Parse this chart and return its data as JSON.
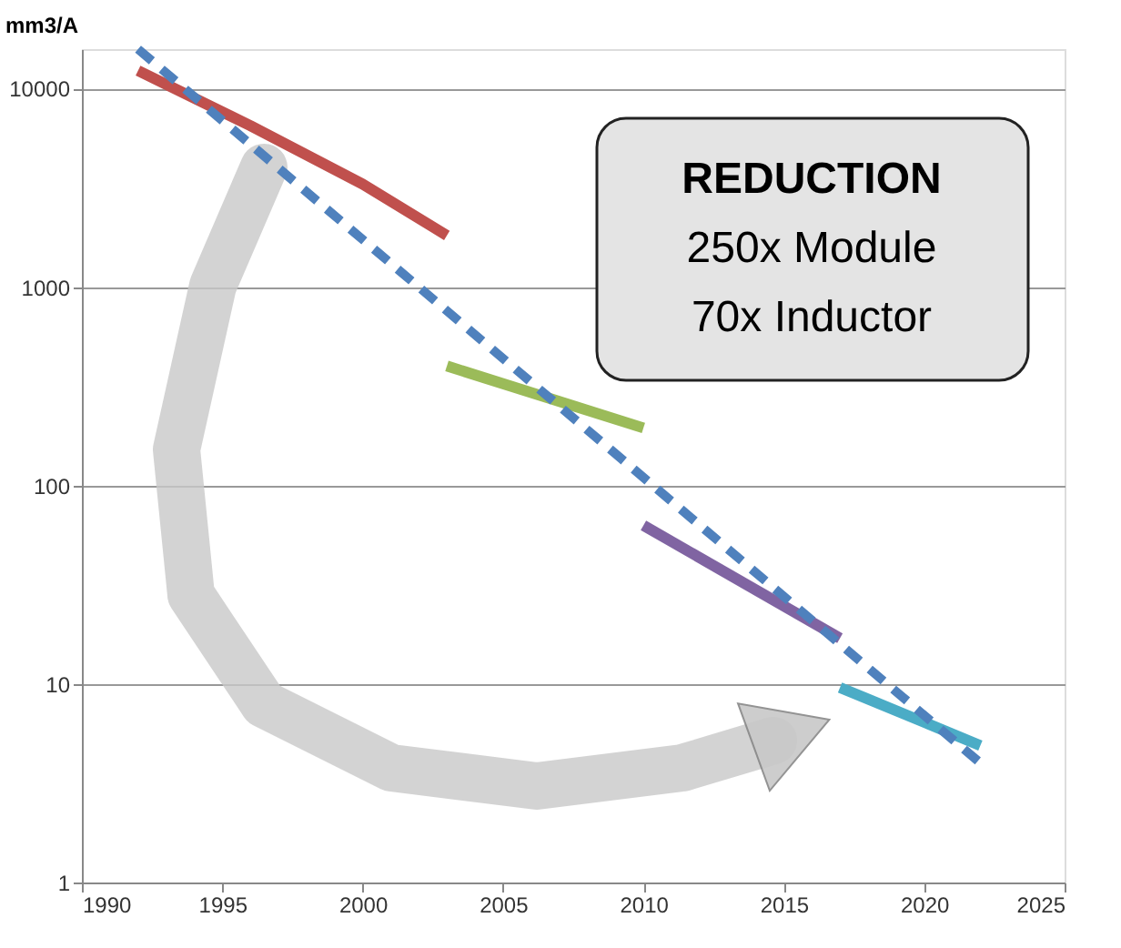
{
  "chart_data": {
    "type": "line",
    "ylabel": "mm3/A",
    "log": "y",
    "grid": "y",
    "line_style": "solid",
    "marker": "none",
    "xlim": [
      1990,
      2025
    ],
    "xticks": [
      1990,
      1995,
      2000,
      2005,
      2010,
      2015,
      2020,
      2025
    ],
    "ylim": [
      1,
      15800
    ],
    "yticks": [
      1,
      10,
      100,
      1000,
      10000
    ],
    "annotations": [
      "REDUCTION",
      "250x Module",
      "70x Inductor"
    ],
    "series": [
      {
        "color": "#c0504d",
        "x": [
          1992,
          1996,
          2000,
          2003
        ],
        "values": [
          12300,
          6500,
          3300,
          1820
        ]
      },
      {
        "color": "#9bbb59",
        "x": [
          2003,
          2010
        ],
        "values": [
          400,
          195
        ]
      },
      {
        "color": "#8064a2",
        "x": [
          2010,
          2017
        ],
        "values": [
          63,
          17
        ]
      },
      {
        "color": "#4bacc6",
        "x": [
          2017,
          2022
        ],
        "values": [
          9.6,
          4.9
        ]
      },
      {
        "color": "#4f81bd",
        "x": [
          1992,
          2022
        ],
        "values": [
          15800,
          4
        ],
        "line_style": "dashed"
      }
    ]
  }
}
